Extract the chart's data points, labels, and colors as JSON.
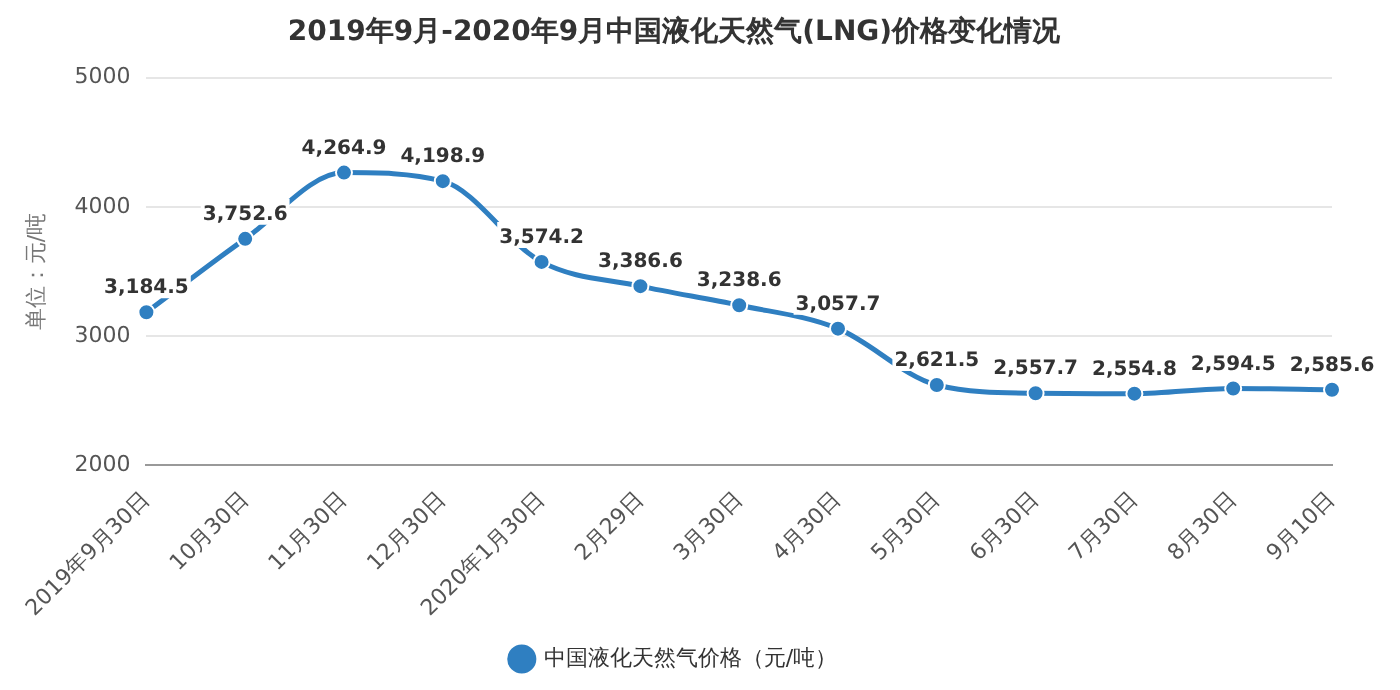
{
  "chart_data": {
    "type": "line",
    "title": "2019年9月-2020年9月中国液化天然气(LNG)价格变化情况",
    "ylabel": "单位：元/吨",
    "categories": [
      "2019年9月30日",
      "10月30日",
      "11月30日",
      "12月30日",
      "2020年1月30日",
      "2月29日",
      "3月30日",
      "4月30日",
      "5月30日",
      "6月30日",
      "7月30日",
      "8月30日",
      "9月10日"
    ],
    "series": [
      {
        "name": "中国液化天然气价格（元/吨）",
        "color": "#2f7fc1",
        "values": [
          3184.5,
          3752.6,
          4264.9,
          4198.9,
          3574.2,
          3386.6,
          3238.6,
          3057.7,
          2621.5,
          2557.7,
          2554.8,
          2594.5,
          2585.6
        ],
        "value_labels": [
          "3,184.5",
          "3,752.6",
          "4,264.9",
          "4,198.9",
          "3,574.2",
          "3,386.6",
          "3,238.6",
          "3,057.7",
          "2,621.5",
          "2,557.7",
          "2,554.8",
          "2,594.5",
          "2,585.6"
        ]
      }
    ],
    "ylim": [
      2000,
      5000
    ],
    "yticks": [
      2000,
      3000,
      4000,
      5000
    ],
    "grid": "y",
    "legend": "bottom",
    "marker": "circle",
    "line_style": "solid"
  }
}
